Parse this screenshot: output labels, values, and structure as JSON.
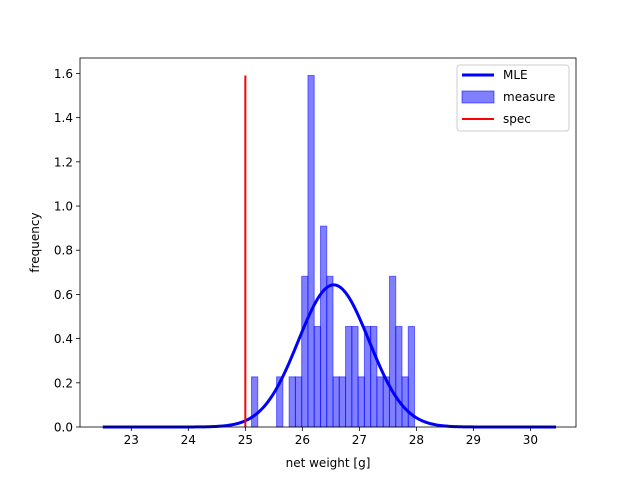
{
  "chart_data": {
    "type": "bar",
    "xlabel": "net weight [g]",
    "ylabel": "frequency",
    "xlim": [
      22.1,
      30.8
    ],
    "ylim": [
      0,
      1.67
    ],
    "xticks": [
      "23",
      "24",
      "25",
      "26",
      "27",
      "28",
      "29",
      "30"
    ],
    "yticks": [
      "0.0",
      "0.2",
      "0.4",
      "0.6",
      "0.8",
      "1.0",
      "1.2",
      "1.4",
      "1.6"
    ],
    "legend_position": "top-right",
    "histogram": {
      "name": "measure",
      "color": "#0000ff",
      "bins": [
        {
          "x0": 25.108,
          "x1": 25.218,
          "value": 0.227
        },
        {
          "x0": 25.218,
          "x1": 25.328,
          "value": 0
        },
        {
          "x0": 25.328,
          "x1": 25.438,
          "value": 0
        },
        {
          "x0": 25.438,
          "x1": 25.548,
          "value": 0
        },
        {
          "x0": 25.548,
          "x1": 25.658,
          "value": 0.227
        },
        {
          "x0": 25.658,
          "x1": 25.768,
          "value": 0
        },
        {
          "x0": 25.768,
          "x1": 25.878,
          "value": 0.227
        },
        {
          "x0": 25.878,
          "x1": 25.988,
          "value": 0.227
        },
        {
          "x0": 25.988,
          "x1": 26.098,
          "value": 0.682
        },
        {
          "x0": 26.098,
          "x1": 26.208,
          "value": 1.591
        },
        {
          "x0": 26.208,
          "x1": 26.318,
          "value": 0.455
        },
        {
          "x0": 26.318,
          "x1": 26.428,
          "value": 0.909
        },
        {
          "x0": 26.428,
          "x1": 26.538,
          "value": 0.682
        },
        {
          "x0": 26.538,
          "x1": 26.648,
          "value": 0.227
        },
        {
          "x0": 26.648,
          "x1": 26.758,
          "value": 0.227
        },
        {
          "x0": 26.758,
          "x1": 26.868,
          "value": 0.455
        },
        {
          "x0": 26.868,
          "x1": 26.978,
          "value": 0.455
        },
        {
          "x0": 26.978,
          "x1": 27.088,
          "value": 0.227
        },
        {
          "x0": 27.088,
          "x1": 27.198,
          "value": 0.455
        },
        {
          "x0": 27.198,
          "x1": 27.308,
          "value": 0.455
        },
        {
          "x0": 27.308,
          "x1": 27.418,
          "value": 0.227
        },
        {
          "x0": 27.418,
          "x1": 27.528,
          "value": 0.227
        },
        {
          "x0": 27.528,
          "x1": 27.638,
          "value": 0.682
        },
        {
          "x0": 27.638,
          "x1": 27.748,
          "value": 0.455
        },
        {
          "x0": 27.748,
          "x1": 27.858,
          "value": 0.227
        },
        {
          "x0": 27.858,
          "x1": 27.968,
          "value": 0.455
        }
      ]
    },
    "mle_curve": {
      "name": "MLE",
      "color": "#0000ff",
      "mean": 26.55,
      "std": 0.62,
      "x_range": [
        22.5,
        30.45
      ]
    },
    "spec_line": {
      "name": "spec",
      "color": "#ff0000",
      "x": 25.0,
      "y_range": [
        0,
        1.591
      ]
    },
    "legend": [
      {
        "label": "MLE",
        "kind": "line"
      },
      {
        "label": "measure",
        "kind": "patch"
      },
      {
        "label": "spec",
        "kind": "line"
      }
    ]
  }
}
